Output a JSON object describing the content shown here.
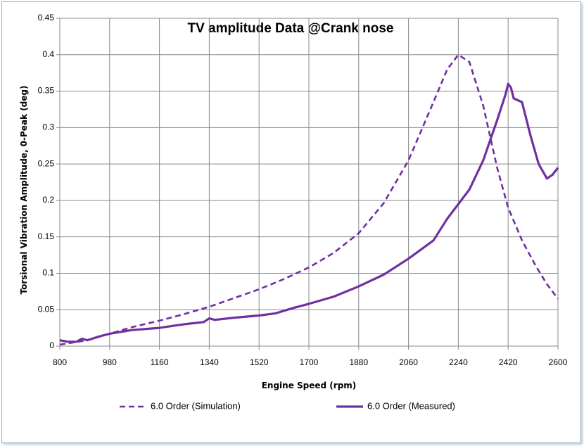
{
  "chart_data": {
    "type": "line",
    "title": "TV amplitude Data @Crank nose",
    "xlabel": "Engine Speed (rpm)",
    "ylabel": "Torsional Vibration Amplitude, 0-Peak (deg)",
    "xlim": [
      800,
      2600
    ],
    "ylim": [
      0,
      0.45
    ],
    "xticks": [
      "800",
      "980",
      "1160",
      "1340",
      "1520",
      "1700",
      "1880",
      "2060",
      "2240",
      "2420",
      "2600"
    ],
    "yticks": [
      "0",
      "0.05",
      "0.1",
      "0.15",
      "0.2",
      "0.25",
      "0.3",
      "0.35",
      "0.4",
      "0.45"
    ],
    "grid": true,
    "legend_position": "bottom",
    "series": [
      {
        "name": "6.0 Order (Simulation)",
        "style": "dashed",
        "color": "#7030a0",
        "x": [
          800,
          900,
          980,
          1060,
          1160,
          1250,
          1340,
          1430,
          1520,
          1610,
          1700,
          1790,
          1880,
          1970,
          2060,
          2150,
          2200,
          2240,
          2280,
          2330,
          2380,
          2420,
          2470,
          2520,
          2560,
          2600
        ],
        "y": [
          0.002,
          0.008,
          0.017,
          0.026,
          0.035,
          0.044,
          0.054,
          0.066,
          0.078,
          0.092,
          0.108,
          0.128,
          0.155,
          0.196,
          0.255,
          0.335,
          0.38,
          0.4,
          0.39,
          0.33,
          0.245,
          0.19,
          0.145,
          0.11,
          0.085,
          0.065
        ]
      },
      {
        "name": "6.0 Order (Measured)",
        "style": "solid",
        "color": "#7030a0",
        "x": [
          800,
          830,
          860,
          880,
          900,
          940,
          980,
          1060,
          1160,
          1250,
          1320,
          1340,
          1360,
          1430,
          1520,
          1580,
          1640,
          1700,
          1790,
          1880,
          1970,
          2060,
          2150,
          2200,
          2240,
          2280,
          2330,
          2380,
          2410,
          2420,
          2430,
          2440,
          2470,
          2500,
          2530,
          2560,
          2580,
          2600
        ],
        "y": [
          0.008,
          0.006,
          0.006,
          0.01,
          0.008,
          0.013,
          0.017,
          0.022,
          0.025,
          0.03,
          0.033,
          0.038,
          0.036,
          0.039,
          0.042,
          0.045,
          0.052,
          0.058,
          0.068,
          0.082,
          0.098,
          0.12,
          0.145,
          0.175,
          0.195,
          0.215,
          0.255,
          0.31,
          0.345,
          0.36,
          0.355,
          0.34,
          0.335,
          0.29,
          0.25,
          0.23,
          0.235,
          0.245
        ]
      }
    ]
  }
}
